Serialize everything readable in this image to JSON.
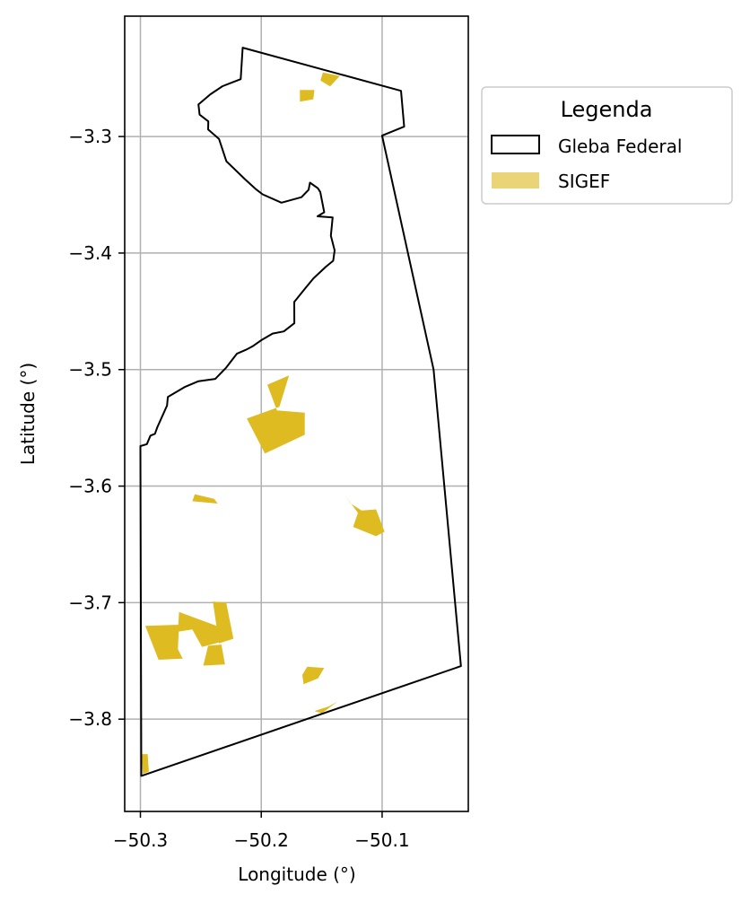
{
  "map": {
    "xlabel": "Longitude (°)",
    "ylabel": "Latitude (°)",
    "xlim": [
      -50.313,
      -50.0287
    ],
    "ylim": [
      -3.8792,
      -3.1967
    ],
    "x_ticks": [
      {
        "value": -50.3,
        "label": "−50.3"
      },
      {
        "value": -50.2,
        "label": "−50.2"
      },
      {
        "value": -50.1,
        "label": "−50.1"
      }
    ],
    "y_ticks": [
      {
        "value": -3.3,
        "label": "−3.3"
      },
      {
        "value": -3.4,
        "label": "−3.4"
      },
      {
        "value": -3.5,
        "label": "−3.5"
      },
      {
        "value": -3.6,
        "label": "−3.6"
      },
      {
        "value": -3.7,
        "label": "−3.7"
      },
      {
        "value": -3.8,
        "label": "−3.8"
      }
    ],
    "grid": true,
    "colors": {
      "boundary": "#000000",
      "sigef_fill": "#dfbb22",
      "sigef_legend": "#ebd378",
      "grid": "#b0b0b0"
    },
    "legend": {
      "title": "Legenda",
      "placement": "outside-top-right",
      "items": [
        {
          "label": "Gleba Federal",
          "kind": "outline"
        },
        {
          "label": "SIGEF",
          "kind": "fill"
        }
      ]
    },
    "boundary": [
      [
        -50.2154,
        -3.2237
      ],
      [
        -50.0844,
        -3.2608
      ],
      [
        -50.0818,
        -3.2915
      ],
      [
        -50.1,
        -3.2992
      ],
      [
        -50.0574,
        -3.5
      ],
      [
        -50.0348,
        -3.7545
      ],
      [
        -50.2993,
        -3.8487
      ],
      [
        -50.3,
        -3.5657
      ],
      [
        -50.2947,
        -3.564
      ],
      [
        -50.2917,
        -3.5567
      ],
      [
        -50.288,
        -3.5551
      ],
      [
        -50.286,
        -3.5494
      ],
      [
        -50.278,
        -3.5309
      ],
      [
        -50.2773,
        -3.5235
      ],
      [
        -50.263,
        -3.5148
      ],
      [
        -50.252,
        -3.51
      ],
      [
        -50.238,
        -3.508
      ],
      [
        -50.2292,
        -3.4985
      ],
      [
        -50.2202,
        -3.4864
      ],
      [
        -50.2127,
        -3.483
      ],
      [
        -50.2073,
        -3.4801
      ],
      [
        -50.1995,
        -3.4745
      ],
      [
        -50.1906,
        -3.4691
      ],
      [
        -50.1813,
        -3.4672
      ],
      [
        -50.1726,
        -3.4602
      ],
      [
        -50.1727,
        -3.442
      ],
      [
        -50.1639,
        -3.4306
      ],
      [
        -50.1568,
        -3.4217
      ],
      [
        -50.1465,
        -3.4117
      ],
      [
        -50.1405,
        -3.4066
      ],
      [
        -50.1393,
        -3.3977
      ],
      [
        -50.1424,
        -3.3851
      ],
      [
        -50.1409,
        -3.3694
      ],
      [
        -50.1535,
        -3.3685
      ],
      [
        -50.1479,
        -3.365
      ],
      [
        -50.1512,
        -3.3476
      ],
      [
        -50.1532,
        -3.3444
      ],
      [
        -50.1597,
        -3.3396
      ],
      [
        -50.1608,
        -3.3457
      ],
      [
        -50.1668,
        -3.3521
      ],
      [
        -50.1833,
        -3.3568
      ],
      [
        -50.1989,
        -3.3496
      ],
      [
        -50.2048,
        -3.3449
      ],
      [
        -50.2135,
        -3.3366
      ],
      [
        -50.2289,
        -3.3212
      ],
      [
        -50.235,
        -3.302
      ],
      [
        -50.244,
        -3.294
      ],
      [
        -50.2438,
        -3.287
      ],
      [
        -50.251,
        -3.2812
      ],
      [
        -50.252,
        -3.2725
      ],
      [
        -50.242,
        -3.2637
      ],
      [
        -50.232,
        -3.2568
      ],
      [
        -50.217,
        -3.2508
      ],
      [
        -50.2154,
        -3.2237
      ]
    ],
    "sigef_parcels": [
      [
        [
          -50.149,
          -3.245
        ],
        [
          -50.135,
          -3.248
        ],
        [
          -50.143,
          -3.257
        ],
        [
          -50.151,
          -3.252
        ]
      ],
      [
        [
          -50.168,
          -3.26
        ],
        [
          -50.156,
          -3.26
        ],
        [
          -50.157,
          -3.268
        ],
        [
          -50.168,
          -3.27
        ]
      ],
      [
        [
          -50.177,
          -3.505
        ],
        [
          -50.195,
          -3.513
        ],
        [
          -50.187,
          -3.535
        ],
        [
          -50.164,
          -3.537
        ],
        [
          -50.164,
          -3.556
        ],
        [
          -50.197,
          -3.572
        ],
        [
          -50.212,
          -3.542
        ],
        [
          -50.185,
          -3.532
        ]
      ],
      [
        [
          -50.255,
          -3.607
        ],
        [
          -50.239,
          -3.611
        ],
        [
          -50.236,
          -3.615
        ],
        [
          -50.257,
          -3.613
        ]
      ],
      [
        [
          -50.13,
          -3.609
        ],
        [
          -50.12,
          -3.623
        ],
        [
          -50.124,
          -3.635
        ],
        [
          -50.105,
          -3.643
        ],
        [
          -50.098,
          -3.639
        ],
        [
          -50.105,
          -3.62
        ],
        [
          -50.117,
          -3.621
        ],
        [
          -50.126,
          -3.615
        ]
      ],
      [
        [
          -50.296,
          -3.72
        ],
        [
          -50.268,
          -3.719
        ],
        [
          -50.269,
          -3.74
        ],
        [
          -50.265,
          -3.748
        ],
        [
          -50.285,
          -3.749
        ]
      ],
      [
        [
          -50.268,
          -3.708
        ],
        [
          -50.237,
          -3.72
        ],
        [
          -50.231,
          -3.733
        ],
        [
          -50.249,
          -3.738
        ],
        [
          -50.257,
          -3.723
        ],
        [
          -50.269,
          -3.725
        ]
      ],
      [
        [
          -50.24,
          -3.699
        ],
        [
          -50.229,
          -3.7
        ],
        [
          -50.223,
          -3.731
        ],
        [
          -50.235,
          -3.735
        ]
      ],
      [
        [
          -50.244,
          -3.737
        ],
        [
          -50.233,
          -3.736
        ],
        [
          -50.23,
          -3.753
        ],
        [
          -50.248,
          -3.754
        ]
      ],
      [
        [
          -50.162,
          -3.755
        ],
        [
          -50.148,
          -3.756
        ],
        [
          -50.153,
          -3.765
        ],
        [
          -50.165,
          -3.77
        ],
        [
          -50.166,
          -3.762
        ]
      ],
      [
        [
          -50.144,
          -3.789
        ],
        [
          -50.137,
          -3.785
        ],
        [
          -50.15,
          -3.795
        ],
        [
          -50.156,
          -3.793
        ]
      ],
      [
        [
          -50.299,
          -3.83
        ],
        [
          -50.294,
          -3.83
        ],
        [
          -50.293,
          -3.845
        ],
        [
          -50.298,
          -3.847
        ]
      ]
    ]
  }
}
